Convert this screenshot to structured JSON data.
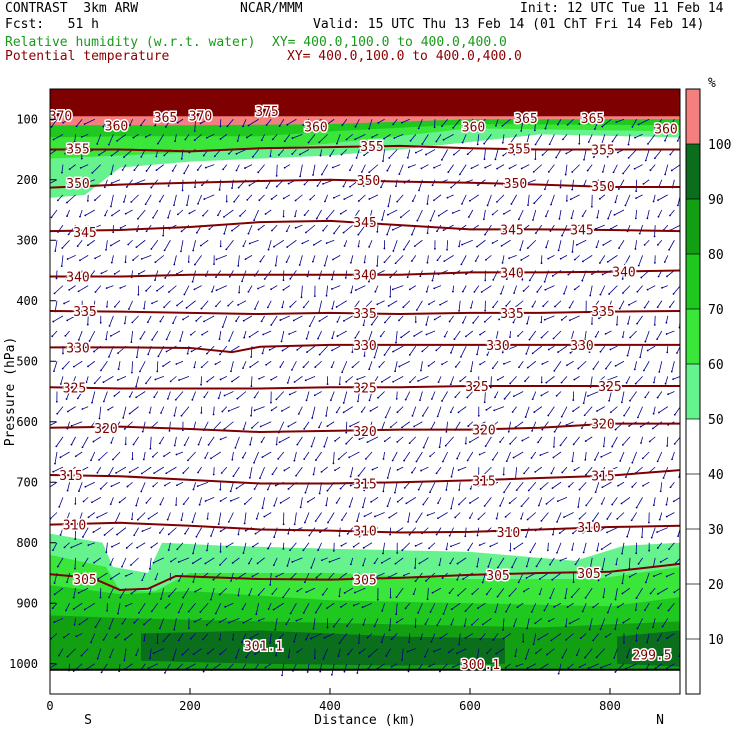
{
  "header": {
    "model": "CONTRAST  3km ARW",
    "center": "NCAR/MMM",
    "init": "Init: 12 UTC Tue 11 Feb 14",
    "fcst": "Fcst:   51 h",
    "valid": "Valid: 15 UTC Thu 13 Feb 14 (01 ChT Fri 14 Feb 14)",
    "field1": "Relative humidity (w.r.t. water)",
    "xy1": "XY= 400.0,100.0 to 400.0,400.0",
    "field2": "Potential temperature",
    "xy2": "XY= 400.0,100.0 to 400.0,400.0"
  },
  "colors": {
    "rh50": "#66f28c",
    "rh60": "#3ae63a",
    "rh70": "#1ec81e",
    "rh80": "#12a012",
    "rh90": "#0b6e1c",
    "rh100": "#f47f7f",
    "theta": "#7f0000",
    "dark_top": "#7f0000",
    "wind": "#00008b"
  },
  "chart_data": {
    "type": "cross-section",
    "xlabel": "Distance (km)",
    "ylabel": "Pressure (hPa)",
    "xlim": [
      0,
      900
    ],
    "ylim_hpa": [
      1050,
      50
    ],
    "x_ticks": [
      0,
      200,
      400,
      600,
      800
    ],
    "y_ticks": [
      100,
      200,
      300,
      400,
      500,
      600,
      700,
      800,
      900,
      1000
    ],
    "x_end_labels": {
      "left": "S",
      "right": "N"
    },
    "colorbar": {
      "unit": "%",
      "levels": [
        10,
        20,
        30,
        40,
        50,
        60,
        70,
        80,
        90,
        100
      ],
      "shaded": [
        {
          "from": 50,
          "to": 60,
          "color": "#66f28c"
        },
        {
          "from": 60,
          "to": 70,
          "color": "#3ae63a"
        },
        {
          "from": 70,
          "to": 80,
          "color": "#1ec81e"
        },
        {
          "from": 80,
          "to": 90,
          "color": "#12a012"
        },
        {
          "from": 90,
          "to": 100,
          "color": "#0b6e1c"
        },
        {
          "from": 100,
          "to": 110,
          "color": "#f47f7f"
        }
      ]
    },
    "theta_contours": [
      {
        "label": "370",
        "labels": [
          {
            "x": 15,
            "p": 94
          },
          {
            "x": 215,
            "p": 94
          }
        ]
      },
      {
        "label": "375",
        "labels": [
          {
            "x": 310,
            "p": 86
          }
        ]
      },
      {
        "label": "365",
        "labels": [
          {
            "x": 165,
            "p": 96
          },
          {
            "x": 680,
            "p": 98
          },
          {
            "x": 775,
            "p": 98
          }
        ]
      },
      {
        "label": "360",
        "labels": [
          {
            "x": 95,
            "p": 110
          },
          {
            "x": 380,
            "p": 112
          },
          {
            "x": 605,
            "p": 112
          },
          {
            "x": 880,
            "p": 115
          }
        ]
      },
      {
        "label": "355",
        "labels": [
          {
            "x": 40,
            "p": 148
          },
          {
            "x": 460,
            "p": 144
          },
          {
            "x": 670,
            "p": 148
          },
          {
            "x": 790,
            "p": 150
          }
        ]
      },
      {
        "label": "350",
        "labels": [
          {
            "x": 40,
            "p": 205
          },
          {
            "x": 455,
            "p": 200
          },
          {
            "x": 665,
            "p": 205
          },
          {
            "x": 790,
            "p": 210
          }
        ]
      },
      {
        "label": "345",
        "labels": [
          {
            "x": 50,
            "p": 286
          },
          {
            "x": 450,
            "p": 270
          },
          {
            "x": 660,
            "p": 282
          },
          {
            "x": 760,
            "p": 282
          }
        ]
      },
      {
        "label": "340",
        "labels": [
          {
            "x": 40,
            "p": 360
          },
          {
            "x": 450,
            "p": 357
          },
          {
            "x": 660,
            "p": 353
          },
          {
            "x": 820,
            "p": 352
          }
        ]
      },
      {
        "label": "335",
        "labels": [
          {
            "x": 50,
            "p": 417
          },
          {
            "x": 450,
            "p": 420
          },
          {
            "x": 660,
            "p": 420
          },
          {
            "x": 790,
            "p": 417
          }
        ]
      },
      {
        "label": "330",
        "labels": [
          {
            "x": 40,
            "p": 477
          },
          {
            "x": 450,
            "p": 473
          },
          {
            "x": 640,
            "p": 473
          },
          {
            "x": 760,
            "p": 473
          }
        ]
      },
      {
        "label": "325",
        "labels": [
          {
            "x": 35,
            "p": 543
          },
          {
            "x": 450,
            "p": 543
          },
          {
            "x": 610,
            "p": 541
          },
          {
            "x": 800,
            "p": 541
          }
        ]
      },
      {
        "label": "320",
        "labels": [
          {
            "x": 80,
            "p": 610
          },
          {
            "x": 450,
            "p": 615
          },
          {
            "x": 620,
            "p": 613
          },
          {
            "x": 790,
            "p": 603
          }
        ]
      },
      {
        "label": "315",
        "labels": [
          {
            "x": 30,
            "p": 688
          },
          {
            "x": 450,
            "p": 702
          },
          {
            "x": 620,
            "p": 697
          },
          {
            "x": 790,
            "p": 689
          }
        ]
      },
      {
        "label": "310",
        "labels": [
          {
            "x": 35,
            "p": 770
          },
          {
            "x": 450,
            "p": 780
          },
          {
            "x": 655,
            "p": 782
          },
          {
            "x": 770,
            "p": 774
          }
        ]
      },
      {
        "label": "305",
        "labels": [
          {
            "x": 50,
            "p": 860
          },
          {
            "x": 450,
            "p": 861
          },
          {
            "x": 640,
            "p": 853
          },
          {
            "x": 770,
            "p": 850
          }
        ]
      },
      {
        "label": "301.1",
        "labels": [
          {
            "x": 305,
            "p": 970
          }
        ]
      },
      {
        "label": "300.1",
        "labels": [
          {
            "x": 615,
            "p": 1000
          }
        ]
      },
      {
        "label": "299.5",
        "labels": [
          {
            "x": 860,
            "p": 985
          }
        ]
      }
    ],
    "theta_lines": [
      {
        "value": 355,
        "points": [
          [
            0,
            150
          ],
          [
            100,
            150
          ],
          [
            200,
            153
          ],
          [
            300,
            148
          ],
          [
            400,
            146
          ],
          [
            500,
            144
          ],
          [
            600,
            148
          ],
          [
            700,
            150
          ],
          [
            800,
            150
          ],
          [
            900,
            150
          ]
        ]
      },
      {
        "value": 350,
        "points": [
          [
            0,
            213
          ],
          [
            100,
            208
          ],
          [
            200,
            205
          ],
          [
            300,
            202
          ],
          [
            400,
            200
          ],
          [
            500,
            203
          ],
          [
            600,
            205
          ],
          [
            700,
            208
          ],
          [
            800,
            212
          ],
          [
            900,
            212
          ]
        ]
      },
      {
        "value": 345,
        "points": [
          [
            0,
            285
          ],
          [
            100,
            283
          ],
          [
            200,
            278
          ],
          [
            300,
            270
          ],
          [
            400,
            268
          ],
          [
            500,
            275
          ],
          [
            600,
            282
          ],
          [
            700,
            282
          ],
          [
            800,
            283
          ],
          [
            900,
            285
          ]
        ]
      },
      {
        "value": 340,
        "points": [
          [
            0,
            360
          ],
          [
            100,
            360
          ],
          [
            200,
            357
          ],
          [
            300,
            357
          ],
          [
            400,
            357
          ],
          [
            500,
            357
          ],
          [
            600,
            353
          ],
          [
            700,
            353
          ],
          [
            800,
            352
          ],
          [
            900,
            350
          ]
        ]
      },
      {
        "value": 335,
        "points": [
          [
            0,
            417
          ],
          [
            100,
            418
          ],
          [
            200,
            420
          ],
          [
            300,
            422
          ],
          [
            400,
            420
          ],
          [
            500,
            422
          ],
          [
            600,
            420
          ],
          [
            700,
            420
          ],
          [
            800,
            418
          ],
          [
            900,
            417
          ]
        ]
      },
      {
        "value": 330,
        "points": [
          [
            0,
            477
          ],
          [
            100,
            477
          ],
          [
            200,
            478
          ],
          [
            260,
            485
          ],
          [
            300,
            476
          ],
          [
            400,
            473
          ],
          [
            500,
            473
          ],
          [
            600,
            473
          ],
          [
            700,
            473
          ],
          [
            800,
            473
          ],
          [
            900,
            473
          ]
        ]
      },
      {
        "value": 325,
        "points": [
          [
            0,
            543
          ],
          [
            100,
            545
          ],
          [
            200,
            545
          ],
          [
            300,
            545
          ],
          [
            400,
            543
          ],
          [
            500,
            543
          ],
          [
            600,
            541
          ],
          [
            700,
            541
          ],
          [
            800,
            541
          ],
          [
            900,
            541
          ]
        ]
      },
      {
        "value": 320,
        "points": [
          [
            0,
            610
          ],
          [
            100,
            608
          ],
          [
            200,
            612
          ],
          [
            300,
            617
          ],
          [
            400,
            615
          ],
          [
            500,
            613
          ],
          [
            600,
            613
          ],
          [
            700,
            610
          ],
          [
            800,
            603
          ],
          [
            900,
            603
          ]
        ]
      },
      {
        "value": 315,
        "points": [
          [
            0,
            688
          ],
          [
            100,
            690
          ],
          [
            200,
            696
          ],
          [
            300,
            702
          ],
          [
            400,
            702
          ],
          [
            500,
            700
          ],
          [
            600,
            697
          ],
          [
            700,
            693
          ],
          [
            800,
            689
          ],
          [
            900,
            680
          ]
        ]
      },
      {
        "value": 310,
        "points": [
          [
            0,
            770
          ],
          [
            100,
            767
          ],
          [
            200,
            772
          ],
          [
            300,
            778
          ],
          [
            400,
            780
          ],
          [
            500,
            783
          ],
          [
            600,
            782
          ],
          [
            700,
            778
          ],
          [
            800,
            774
          ],
          [
            900,
            772
          ]
        ]
      },
      {
        "value": 305,
        "points": [
          [
            0,
            852
          ],
          [
            60,
            858
          ],
          [
            100,
            878
          ],
          [
            140,
            876
          ],
          [
            180,
            855
          ],
          [
            300,
            860
          ],
          [
            400,
            861
          ],
          [
            500,
            858
          ],
          [
            600,
            853
          ],
          [
            700,
            850
          ],
          [
            800,
            848
          ],
          [
            900,
            835
          ]
        ]
      }
    ]
  }
}
